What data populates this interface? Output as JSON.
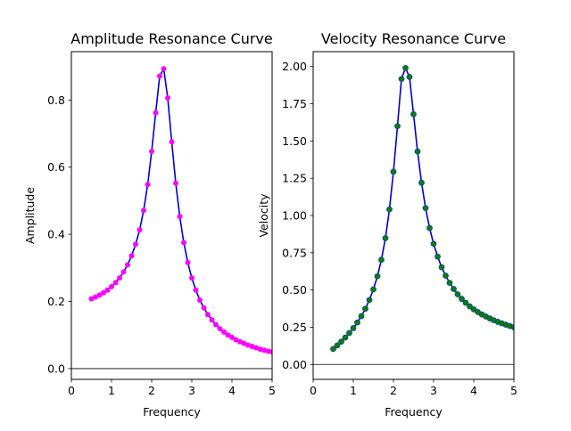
{
  "chart_data": [
    {
      "type": "line",
      "title": "Amplitude Resonance Curve",
      "xlabel": "Frequency",
      "ylabel": "Amplitude",
      "xlim": [
        0,
        5
      ],
      "ylim": [
        -0.032,
        0.944
      ],
      "xticks": [
        0,
        1,
        2,
        3,
        4,
        5
      ],
      "yticks": [
        0.0,
        0.2,
        0.4,
        0.6,
        0.8
      ],
      "ytick_labels": [
        "0.0",
        "0.2",
        "0.4",
        "0.6",
        "0.8"
      ],
      "zero_line": true,
      "line_color": "#0000cc",
      "marker_color": "#ff00ff",
      "series": [
        {
          "x": [
            0.5,
            0.6,
            0.7,
            0.8,
            0.9,
            1.0,
            1.1,
            1.2,
            1.3,
            1.4,
            1.5,
            1.6,
            1.7,
            1.8,
            1.9,
            2.0,
            2.1,
            2.2,
            2.3,
            2.4,
            2.5,
            2.6,
            2.7,
            2.8,
            2.9,
            3.0,
            3.1,
            3.2,
            3.3,
            3.4,
            3.5,
            3.6,
            3.7,
            3.8,
            3.9,
            4.0,
            4.1,
            4.2,
            4.3,
            4.4,
            4.5,
            4.6,
            4.7,
            4.8,
            4.9,
            5.0
          ],
          "y": [
            0.208,
            0.213,
            0.219,
            0.226,
            0.234,
            0.244,
            0.256,
            0.27,
            0.288,
            0.309,
            0.336,
            0.37,
            0.413,
            0.471,
            0.548,
            0.647,
            0.762,
            0.871,
            0.893,
            0.806,
            0.675,
            0.552,
            0.453,
            0.375,
            0.316,
            0.27,
            0.234,
            0.204,
            0.181,
            0.161,
            0.145,
            0.131,
            0.119,
            0.109,
            0.1,
            0.093,
            0.086,
            0.08,
            0.075,
            0.07,
            0.066,
            0.062,
            0.058,
            0.055,
            0.052,
            0.05
          ]
        }
      ]
    },
    {
      "type": "line",
      "title": "Velocity Resonance Curve",
      "xlabel": "Frequency",
      "ylabel": "Velocity",
      "xlim": [
        0,
        5
      ],
      "ylim": [
        -0.1,
        2.1
      ],
      "xticks": [
        0,
        1,
        2,
        3,
        4,
        5
      ],
      "yticks": [
        0.0,
        0.25,
        0.5,
        0.75,
        1.0,
        1.25,
        1.5,
        1.75,
        2.0
      ],
      "ytick_labels": [
        "0.00",
        "0.25",
        "0.50",
        "0.75",
        "1.00",
        "1.25",
        "1.50",
        "1.75",
        "2.00"
      ],
      "zero_line": true,
      "line_color": "#0000cc",
      "marker_color": "#008000",
      "series": [
        {
          "x": [
            0.5,
            0.6,
            0.7,
            0.8,
            0.9,
            1.0,
            1.1,
            1.2,
            1.3,
            1.4,
            1.5,
            1.6,
            1.7,
            1.8,
            1.9,
            2.0,
            2.1,
            2.2,
            2.3,
            2.4,
            2.5,
            2.6,
            2.7,
            2.8,
            2.9,
            3.0,
            3.1,
            3.2,
            3.3,
            3.4,
            3.5,
            3.6,
            3.7,
            3.8,
            3.9,
            4.0,
            4.1,
            4.2,
            4.3,
            4.4,
            4.5,
            4.6,
            4.7,
            4.8,
            4.9,
            5.0
          ],
          "y": [
            0.104,
            0.128,
            0.153,
            0.181,
            0.211,
            0.244,
            0.282,
            0.324,
            0.374,
            0.433,
            0.504,
            0.592,
            0.703,
            0.848,
            1.041,
            1.294,
            1.6,
            1.917,
            1.99,
            1.93,
            1.68,
            1.43,
            1.22,
            1.05,
            0.916,
            0.81,
            0.724,
            0.653,
            0.596,
            0.548,
            0.507,
            0.471,
            0.44,
            0.414,
            0.39,
            0.37,
            0.352,
            0.336,
            0.322,
            0.309,
            0.297,
            0.286,
            0.276,
            0.267,
            0.258,
            0.25
          ]
        }
      ]
    }
  ]
}
